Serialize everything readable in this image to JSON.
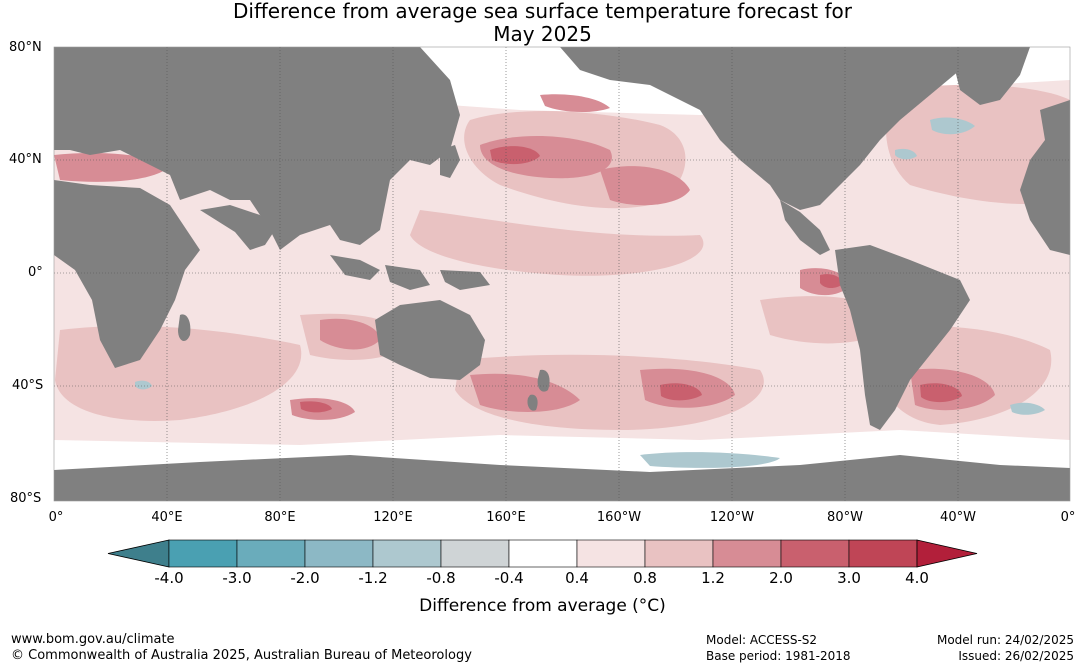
{
  "title": {
    "line1": "Difference from average sea surface temperature forecast for",
    "line2": "May 2025"
  },
  "axes": {
    "lat_labels": [
      "80°N",
      "40°N",
      "0°",
      "40°S",
      "80°S"
    ],
    "lon_labels": [
      "0°",
      "40°E",
      "80°E",
      "120°E",
      "160°E",
      "160°W",
      "120°W",
      "80°W",
      "40°W",
      "0°"
    ]
  },
  "colorbar": {
    "label": "Difference from average (°C)",
    "ticks": [
      "-4.0",
      "-3.0",
      "-2.0",
      "-1.2",
      "-0.8",
      "-0.4",
      "0.4",
      "0.8",
      "1.2",
      "2.0",
      "3.0",
      "4.0"
    ],
    "colors": [
      "#3e7f8c",
      "#4aa0b2",
      "#6aacbb",
      "#8cb8c5",
      "#adc8cf",
      "#cfd4d6",
      "#ffffff",
      "#f5e3e3",
      "#e9c2c2",
      "#d78c95",
      "#c9606e",
      "#bf4556",
      "#b21f3a"
    ]
  },
  "map_colors": {
    "land": "#808080",
    "ocean_neutral": "#ffffff",
    "warm_light": "#f5e3e3",
    "warm_mid": "#e9c2c2",
    "warm_strong": "#d78c95",
    "warm_hot": "#c9606e",
    "cool": "#adc8cf"
  },
  "footer": {
    "url": "www.bom.gov.au/climate",
    "copyright": "© Commonwealth of Australia 2025, Australian Bureau of Meteorology",
    "model": "Model: ACCESS-S2",
    "base_period": "Base period: 1981-2018",
    "model_run": "Model run: 24/02/2025",
    "issued": "Issued: 26/02/2025"
  }
}
